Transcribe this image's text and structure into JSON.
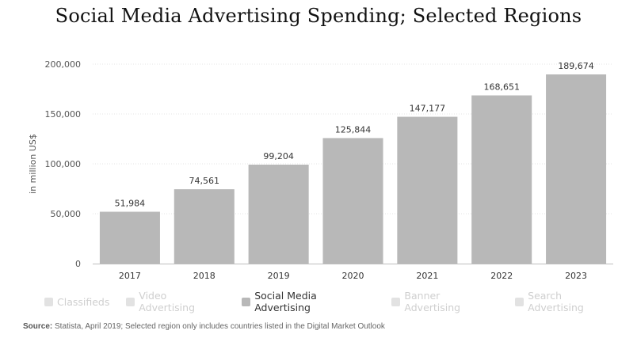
{
  "chart_data": {
    "type": "bar",
    "title": "Social Media Advertising Spending; Selected Regions",
    "ylabel": "in million US$",
    "xlabel": "",
    "categories": [
      "2017",
      "2018",
      "2019",
      "2020",
      "2021",
      "2022",
      "2023"
    ],
    "series": [
      {
        "name": "Social Media Advertising",
        "values": [
          51984,
          74561,
          99204,
          125844,
          147177,
          168651,
          189674
        ]
      }
    ],
    "value_labels": [
      "51,984",
      "74,561",
      "99,204",
      "125,844",
      "147,177",
      "168,651",
      "189,674"
    ],
    "ylim": [
      0,
      200000
    ],
    "yticks": [
      0,
      50000,
      100000,
      150000,
      200000
    ],
    "ytick_labels": [
      "0",
      "50,000",
      "100,000",
      "150,000",
      "200,000"
    ],
    "grid": true,
    "bar_color": "#b8b8b8"
  },
  "legend": [
    {
      "label": "Classifieds",
      "active": false
    },
    {
      "label": "Video Advertising",
      "active": false
    },
    {
      "label": "Social Media Advertising",
      "active": true
    },
    {
      "label": "Banner Advertising",
      "active": false
    },
    {
      "label": "Search Advertising",
      "active": false
    }
  ],
  "source": {
    "label": "Source:",
    "text": " Statista, April 2019; Selected region only includes countries listed in the Digital Market Outlook"
  }
}
